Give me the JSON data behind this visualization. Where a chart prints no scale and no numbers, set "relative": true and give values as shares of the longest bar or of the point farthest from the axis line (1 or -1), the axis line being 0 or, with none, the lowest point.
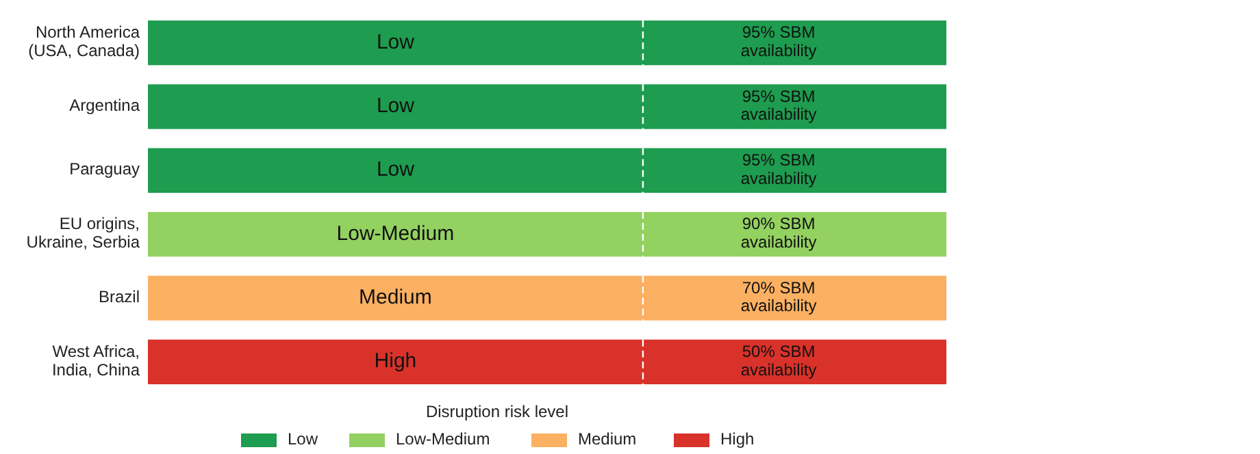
{
  "chart_data": {
    "type": "bar",
    "orientation": "horizontal",
    "stacked": true,
    "relative": true,
    "legend": "bottom",
    "legend_title": "Disruption risk level",
    "categories": [
      "North America\n(USA, Canada)",
      "Argentina",
      "Paraguay",
      "EU origins,\nUkraine, Serbia",
      "Brazil",
      "West Africa,\nIndia, China"
    ],
    "series": [
      {
        "name": "Low",
        "color": "#1e9c4f",
        "values": [
          1,
          1,
          1,
          null,
          null,
          null
        ]
      },
      {
        "name": "Low-Medium",
        "color": "#93d161",
        "values": [
          null,
          null,
          null,
          1,
          null,
          null
        ]
      },
      {
        "name": "Medium",
        "color": "#fbb062",
        "values": [
          null,
          null,
          null,
          null,
          1,
          null
        ]
      },
      {
        "name": "High",
        "color": "#d8322a",
        "values": [
          null,
          null,
          null,
          null,
          null,
          1
        ]
      }
    ],
    "annotations": [
      "95% SBM\navailability",
      "95% SBM\navailability",
      "95% SBM\navailability",
      "90% SBM\navailability",
      "70% SBM\navailability",
      "50% SBM\navailability"
    ]
  }
}
